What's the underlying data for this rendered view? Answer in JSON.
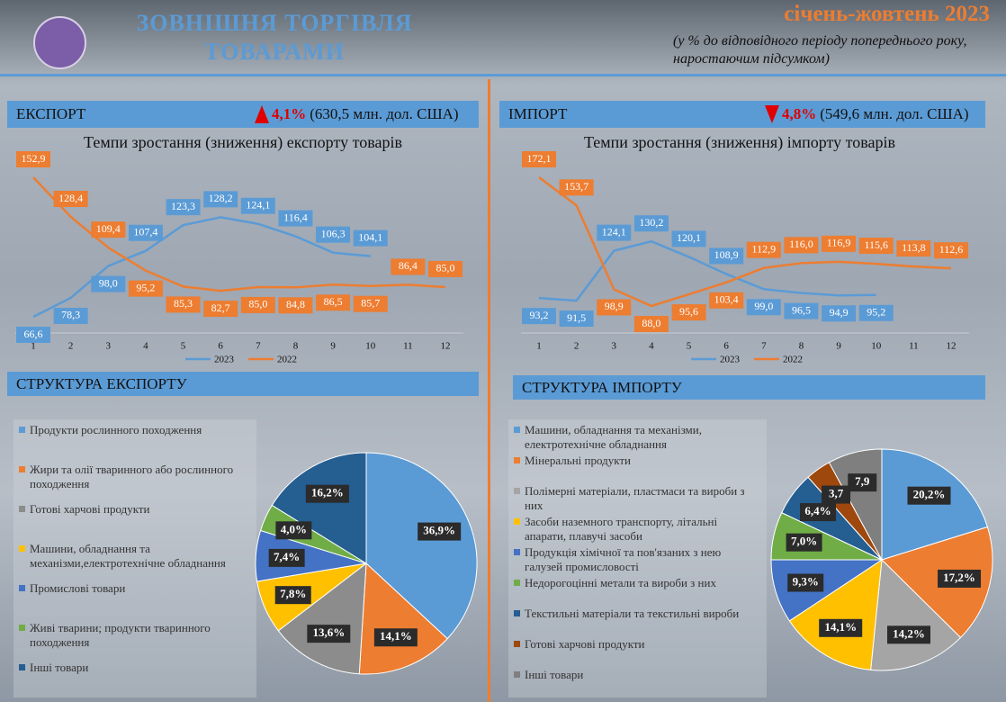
{
  "header": {
    "title_line1": "ЗОВНІШНЯ ТОРГІВЛЯ",
    "title_line2": "ТОВАРАМИ",
    "period": "січень-жовтень 2023",
    "note_line1": "(у % до відповідного періоду попереднього року,",
    "note_line2": "наростаючим підсумком)"
  },
  "export_summary": {
    "label": "ЕКСПОРТ",
    "change": "4,1%",
    "amount": "(630,5 млн. дол. США)"
  },
  "import_summary": {
    "label": "ІМПОРТ",
    "change": "4,8%",
    "amount": "(549,6 млн. дол. США)"
  },
  "chart_data": [
    {
      "type": "line",
      "title": "Темпи зростання (зниження) експорту товарів",
      "categories": [
        "1",
        "2",
        "3",
        "4",
        "5",
        "6",
        "7",
        "8",
        "9",
        "10",
        "11",
        "12"
      ],
      "series": [
        {
          "name": "2023",
          "color": "#5b9bd5",
          "values": [
            66.6,
            78.3,
            98.0,
            107.4,
            123.3,
            128.2,
            124.1,
            116.4,
            106.3,
            104.1,
            null,
            null
          ],
          "value_labels": [
            "66,6",
            "78,3",
            "98,0",
            "107,4",
            "123,3",
            "128,2",
            "124,1",
            "116,4",
            "106,3",
            "104,1",
            null,
            null
          ]
        },
        {
          "name": "2022",
          "color": "#ed7d31",
          "values": [
            152.9,
            128.4,
            109.4,
            95.2,
            85.3,
            82.7,
            85.0,
            84.8,
            86.5,
            85.7,
            86.4,
            85.0
          ],
          "value_labels": [
            "152,9",
            "128,4",
            "109,4",
            "95,2",
            "85,3",
            "82,7",
            "85,0",
            "84,8",
            "86,5",
            "85,7",
            "86,4",
            "85,0"
          ]
        }
      ]
    },
    {
      "type": "line",
      "title": "Темпи зростання (зниження) імпорту товарів",
      "categories": [
        "1",
        "2",
        "3",
        "4",
        "5",
        "6",
        "7",
        "8",
        "9",
        "10",
        "11",
        "12"
      ],
      "series": [
        {
          "name": "2023",
          "color": "#5b9bd5",
          "values": [
            93.2,
            91.5,
            124.1,
            130.2,
            120.1,
            108.9,
            99.0,
            96.5,
            94.9,
            95.2,
            null,
            null
          ],
          "value_labels": [
            "93,2",
            "91,5",
            "124,1",
            "130,2",
            "120,1",
            "108,9",
            "99,0",
            "96,5",
            "94,9",
            "95,2",
            null,
            null
          ]
        },
        {
          "name": "2022",
          "color": "#ed7d31",
          "values": [
            172.1,
            153.7,
            98.9,
            88.0,
            95.6,
            103.4,
            112.9,
            116.0,
            116.9,
            115.6,
            113.8,
            112.6
          ],
          "value_labels": [
            "172,1",
            "153,7",
            "98,9",
            "88,0",
            "95,6",
            "103,4",
            "112,9",
            "116,0",
            "116,9",
            "115,6",
            "113,8",
            "112,6"
          ]
        }
      ]
    },
    {
      "type": "pie",
      "title": "СТРУКТУРА ЕКСПОРТУ",
      "categories": [
        "Продукти рослинного походження",
        "Жири та олії тваринного або рослинного походження",
        "Готові харчові продукти",
        "Машини, обладнання та механізми,електротехнічне обладнання",
        "Промислові товари",
        "Живі тварини; продукти тваринного походження",
        "Інші товари"
      ],
      "values": [
        36.9,
        14.1,
        13.6,
        7.8,
        7.4,
        4.0,
        16.2
      ],
      "value_labels": [
        "36,9%",
        "14,1%",
        "13,6%",
        "7,8%",
        "7,4%",
        "4,0%",
        "16,2%"
      ],
      "colors": [
        "#5b9bd5",
        "#ed7d31",
        "#8c8c8c",
        "#ffc000",
        "#4472c4",
        "#70ad47",
        "#255e91"
      ]
    },
    {
      "type": "pie",
      "title": "СТРУКТУРА  ІМПОРТУ",
      "categories": [
        "Машини, обладнання та механізми, електротехнічне обладнання",
        "Мінеральні продукти",
        "Полімерні матеріали, пластмаси та вироби з них",
        "Засоби наземного транспорту, літальні апарати, плавучі засоби",
        "Продукція хімічної та пов'язаних з нею галузей промисловості",
        "Недорогоцінні метали та вироби з них",
        "Текстильні матеріали та текстильні вироби",
        "Готові харчові продукти",
        "Інші товари"
      ],
      "values": [
        20.2,
        17.2,
        14.2,
        14.1,
        9.3,
        7.0,
        6.4,
        3.7,
        7.9
      ],
      "value_labels": [
        "20,2%",
        "17,2%",
        "14,2%",
        "14,1%",
        "9,3%",
        "7,0%",
        "6,4%",
        "3,7",
        "7,9"
      ],
      "colors": [
        "#5b9bd5",
        "#ed7d31",
        "#a5a5a5",
        "#ffc000",
        "#4472c4",
        "#70ad47",
        "#255e91",
        "#9e480e",
        "#7f7f7f"
      ]
    }
  ]
}
